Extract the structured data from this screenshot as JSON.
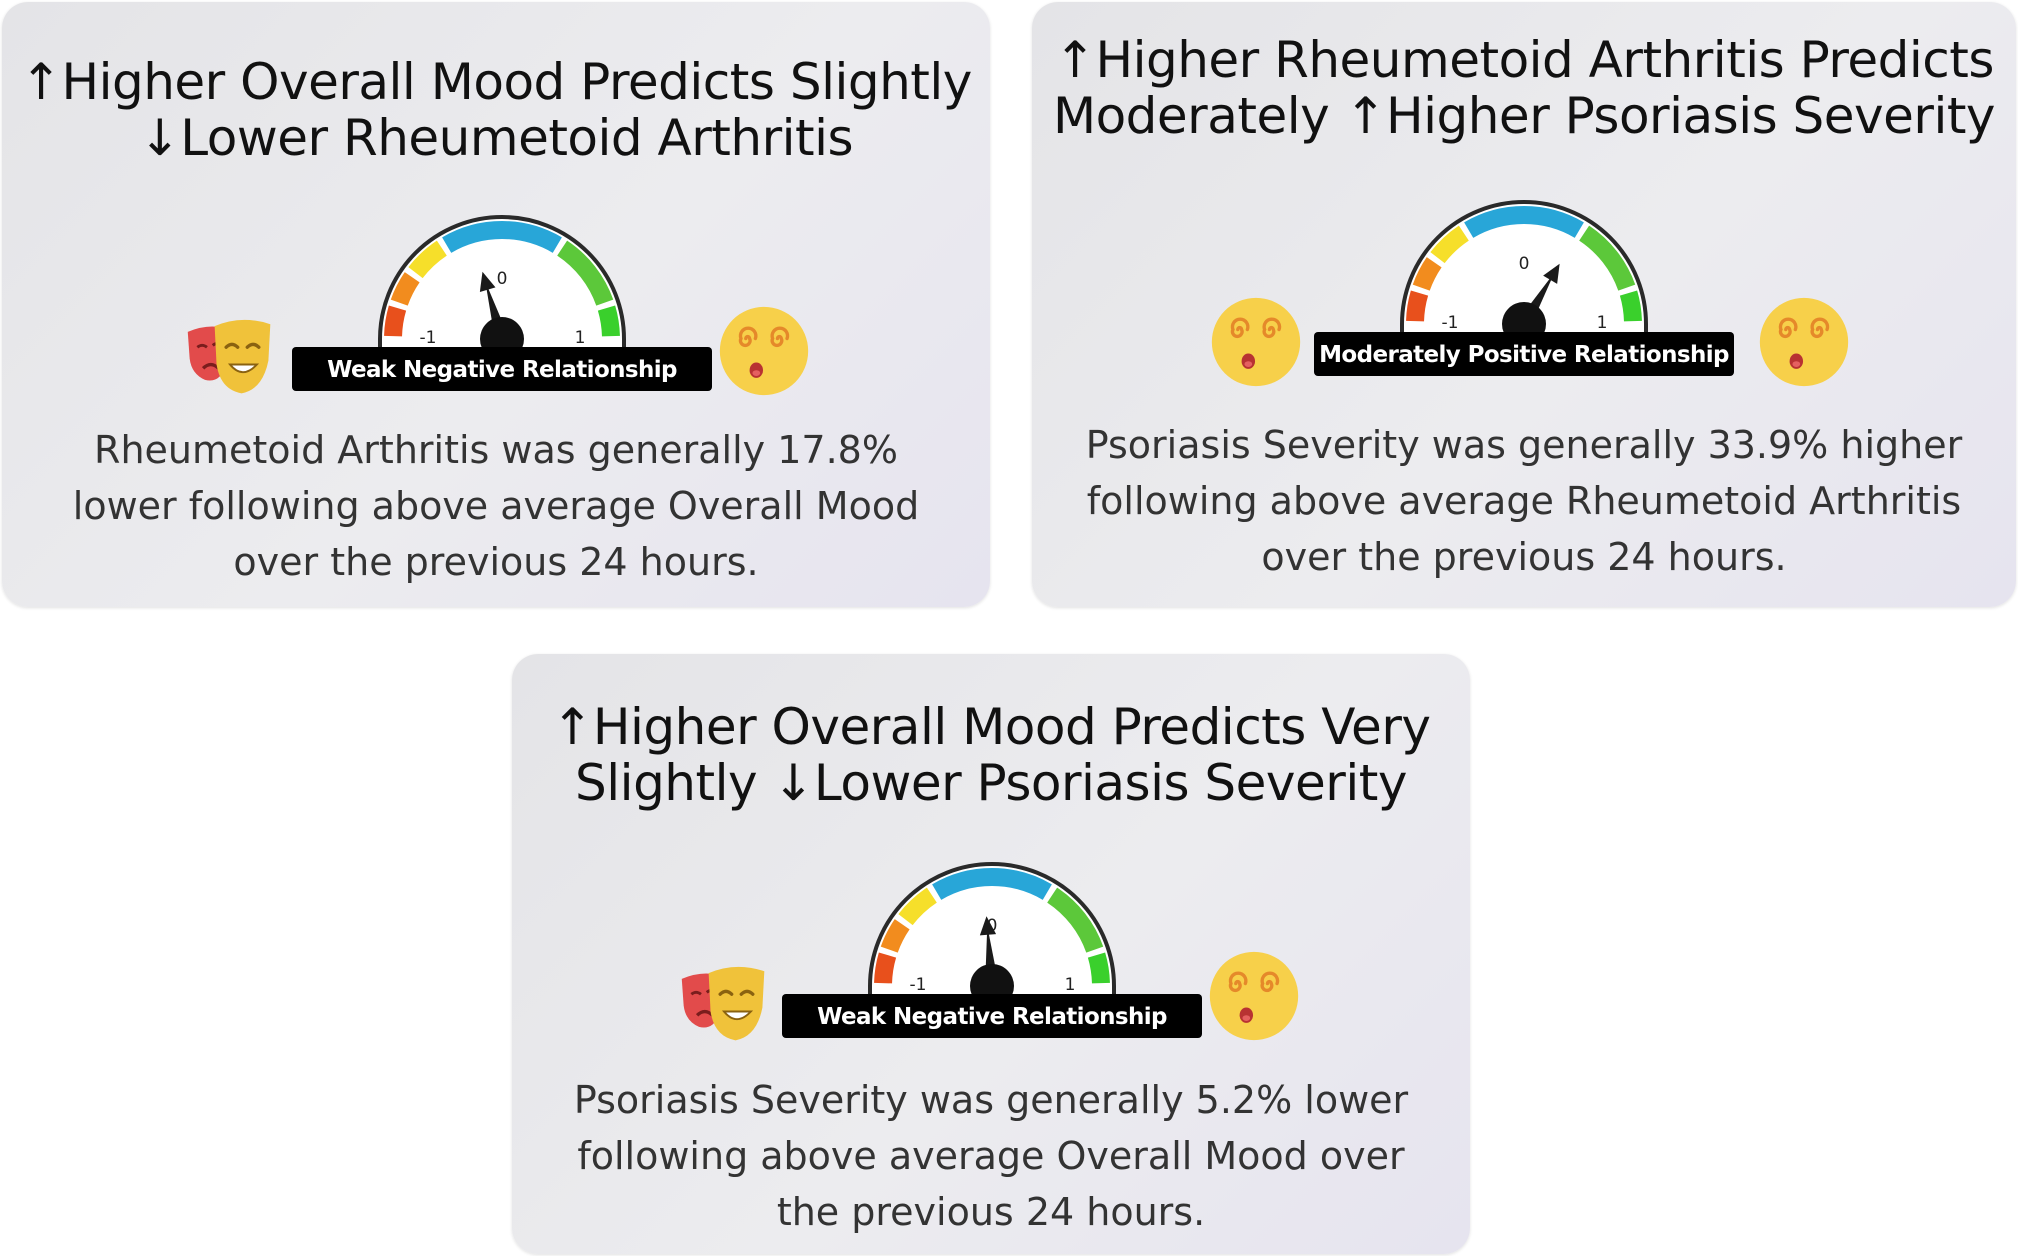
{
  "cards": [
    {
      "title_line1": "↑Higher Overall Mood Predicts Slightly",
      "title_line2": "↓Lower Rheumetoid Arthritis",
      "gauge": {
        "min_label": "-1",
        "mid_label": "0",
        "max_label": "1",
        "value": -0.18,
        "label": "Weak Negative Relationship"
      },
      "left_icon": "theater-masks-icon",
      "right_icon": "dizzy-face-icon",
      "description": "Rheumetoid Arthritis was generally 17.8% lower following above average Overall Mood over the previous 24 hours."
    },
    {
      "title_line1": "↑Higher Rheumetoid Arthritis Predicts",
      "title_line2": "Moderately ↑Higher Psoriasis Severity",
      "gauge": {
        "min_label": "-1",
        "mid_label": "0",
        "max_label": "1",
        "value": 0.34,
        "label": "Moderately Positive Relationship"
      },
      "left_icon": "dizzy-face-icon",
      "right_icon": "dizzy-face-icon",
      "description": "Psoriasis Severity was generally 33.9% higher following above average Rheumetoid Arthritis over the previous 24 hours."
    },
    {
      "title_line1": "↑Higher Overall Mood Predicts Very",
      "title_line2": "Slightly ↓Lower Psoriasis Severity",
      "gauge": {
        "min_label": "-1",
        "mid_label": "0",
        "max_label": "1",
        "value": -0.05,
        "label": "Weak Negative Relationship"
      },
      "left_icon": "theater-masks-icon",
      "right_icon": "dizzy-face-icon",
      "description": "Psoriasis Severity was generally 5.2% lower following above average Overall Mood over the previous 24 hours."
    }
  ],
  "colors": {
    "gauge_red": "#e8501c",
    "gauge_orange": "#f28c1e",
    "gauge_yellow": "#f6df2a",
    "gauge_blue": "#28a6d8",
    "gauge_green": "#5cc83a",
    "gauge_bright_green": "#3ad02c",
    "label_bg": "#000000",
    "emoji_yellow": "#f7d04a",
    "mask_red": "#e24b4b",
    "mask_gold": "#f0c23a"
  }
}
